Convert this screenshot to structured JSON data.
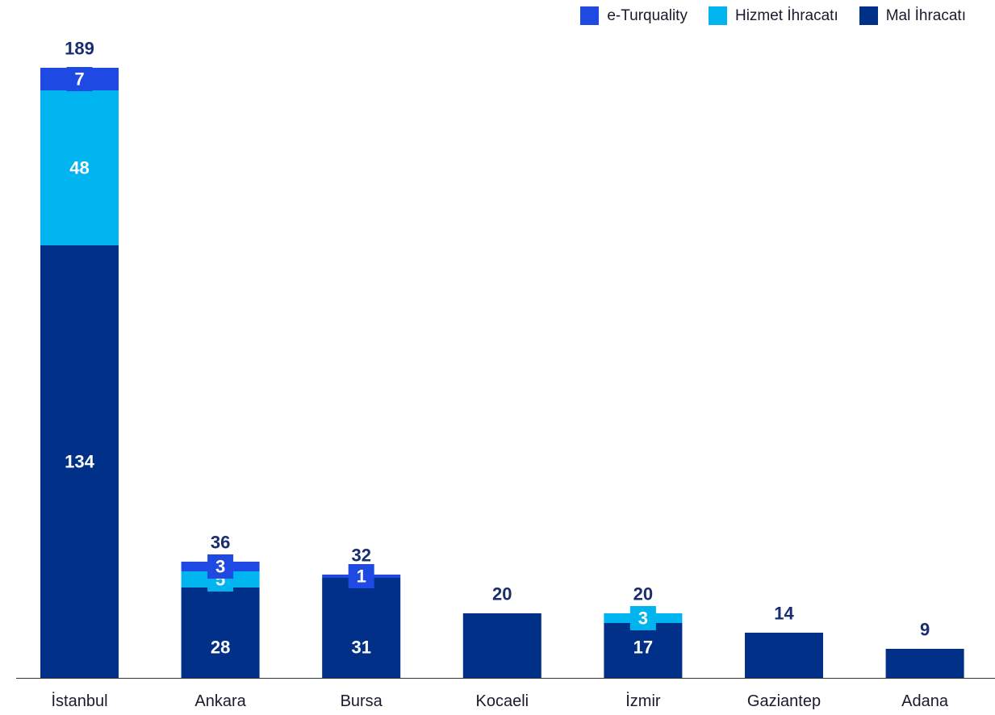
{
  "chart_data": {
    "type": "bar",
    "stacked": true,
    "categories": [
      "İstanbul",
      "Ankara",
      "Bursa",
      "Kocaeli",
      "İzmir",
      "Gaziantep",
      "Adana"
    ],
    "series": [
      {
        "name": "Mal İhracatı",
        "color": "#003087",
        "values": [
          134,
          28,
          31,
          20,
          17,
          14,
          9
        ]
      },
      {
        "name": "Hizmet İhracatı",
        "color": "#00b4ef",
        "values": [
          48,
          5,
          0,
          0,
          3,
          0,
          0
        ]
      },
      {
        "name": "e-Turquality",
        "color": "#1e49e2",
        "values": [
          7,
          3,
          1,
          0,
          0,
          0,
          0
        ]
      }
    ],
    "totals": [
      189,
      36,
      32,
      20,
      20,
      14,
      9
    ],
    "legend": [
      "e-Turquality",
      "Hizmet İhracatı",
      "Mal İhracatı"
    ],
    "legend_position": "top-right",
    "grid": false,
    "ylim": [
      0,
      189
    ]
  }
}
